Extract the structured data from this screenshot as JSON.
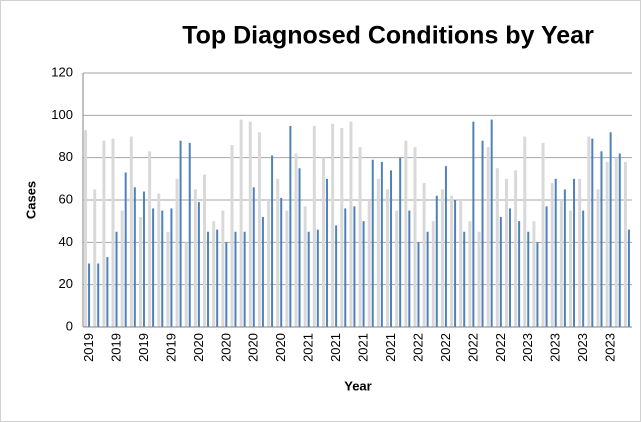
{
  "chart_data": {
    "type": "bar",
    "title": "Top Diagnosed Conditions by Year",
    "xlabel": "Year",
    "ylabel": "Cases",
    "categories": [
      "2019",
      null,
      null,
      "2019",
      null,
      null,
      "2019",
      null,
      null,
      "2019",
      null,
      null,
      "2020",
      null,
      null,
      "2020",
      null,
      null,
      "2020",
      null,
      null,
      "2020",
      null,
      null,
      "2021",
      null,
      null,
      "2021",
      null,
      null,
      "2021",
      null,
      null,
      "2021",
      null,
      null,
      "2022",
      null,
      null,
      "2022",
      null,
      null,
      "2022",
      null,
      null,
      "2022",
      null,
      null,
      "2023",
      null,
      null,
      "2023",
      null,
      null,
      "2023",
      null,
      null,
      "2023",
      null,
      null
    ],
    "series": [
      {
        "color": "#d9d9d9",
        "values": [
          93,
          65,
          88,
          89,
          55,
          90,
          52,
          83,
          63,
          45,
          70,
          40,
          65,
          72,
          50,
          55,
          86,
          98,
          97,
          92,
          60,
          70,
          55,
          82,
          57,
          95,
          80,
          96,
          94,
          97,
          85,
          60,
          70,
          65,
          55,
          88,
          85,
          68,
          50,
          65,
          62,
          60,
          50,
          45,
          85,
          75,
          70,
          74,
          90,
          50,
          87,
          68,
          60,
          55,
          70,
          90,
          65,
          78,
          80,
          78
        ]
      },
      {
        "color": "#4f81bd",
        "values": [
          30,
          30,
          33,
          45,
          73,
          66,
          64,
          56,
          55,
          56,
          88,
          87,
          59,
          45,
          46,
          40,
          45,
          45,
          66,
          52,
          81,
          61,
          95,
          75,
          45,
          46,
          70,
          48,
          56,
          57,
          50,
          79,
          78,
          74,
          80,
          55,
          40,
          45,
          62,
          76,
          60,
          45,
          97,
          88,
          98,
          52,
          56,
          50,
          45,
          40,
          57,
          70,
          65,
          70,
          55,
          89,
          83,
          92,
          82,
          46
        ]
      }
    ],
    "ylim": [
      0,
      120
    ],
    "yticks": [
      0,
      20,
      40,
      60,
      80,
      100,
      120
    ],
    "grid": true
  }
}
